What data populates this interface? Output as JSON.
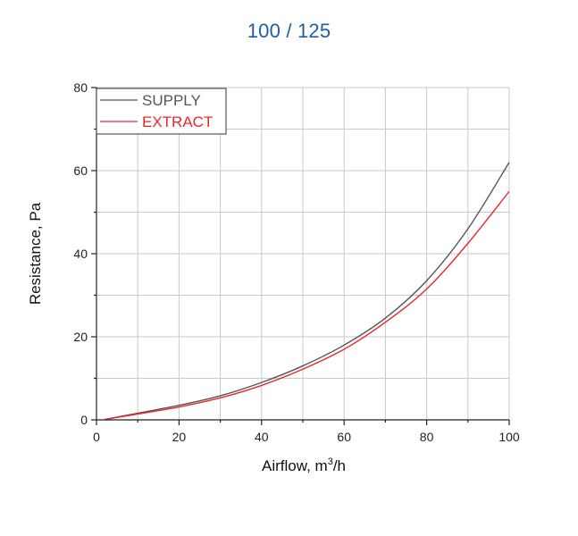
{
  "chart_data": {
    "type": "line",
    "title": "100 / 125",
    "xlabel": "Airflow, m",
    "xlabel_superscript": "3",
    "xlabel_suffix": "/h",
    "ylabel": "Resistance, Pa",
    "xlim": [
      0,
      100
    ],
    "ylim": [
      0,
      80
    ],
    "xticks": [
      0,
      20,
      40,
      60,
      80,
      100
    ],
    "yticks": [
      0,
      20,
      40,
      60,
      80
    ],
    "grid": true,
    "legend_position": "top-left",
    "series": [
      {
        "name": "SUPPLY",
        "color": "#555555",
        "x": [
          2,
          10,
          20,
          30,
          40,
          50,
          60,
          70,
          80,
          90,
          100
        ],
        "y": [
          0.1,
          1.6,
          3.5,
          5.8,
          9.0,
          13.0,
          18.0,
          24.5,
          33.5,
          46.0,
          62.0
        ]
      },
      {
        "name": "EXTRACT",
        "color": "#e8282d",
        "x": [
          2,
          10,
          20,
          30,
          40,
          50,
          60,
          70,
          80,
          90,
          100
        ],
        "y": [
          0.1,
          1.4,
          3.1,
          5.3,
          8.3,
          12.2,
          17.0,
          23.5,
          31.5,
          42.5,
          55.0
        ]
      }
    ]
  }
}
